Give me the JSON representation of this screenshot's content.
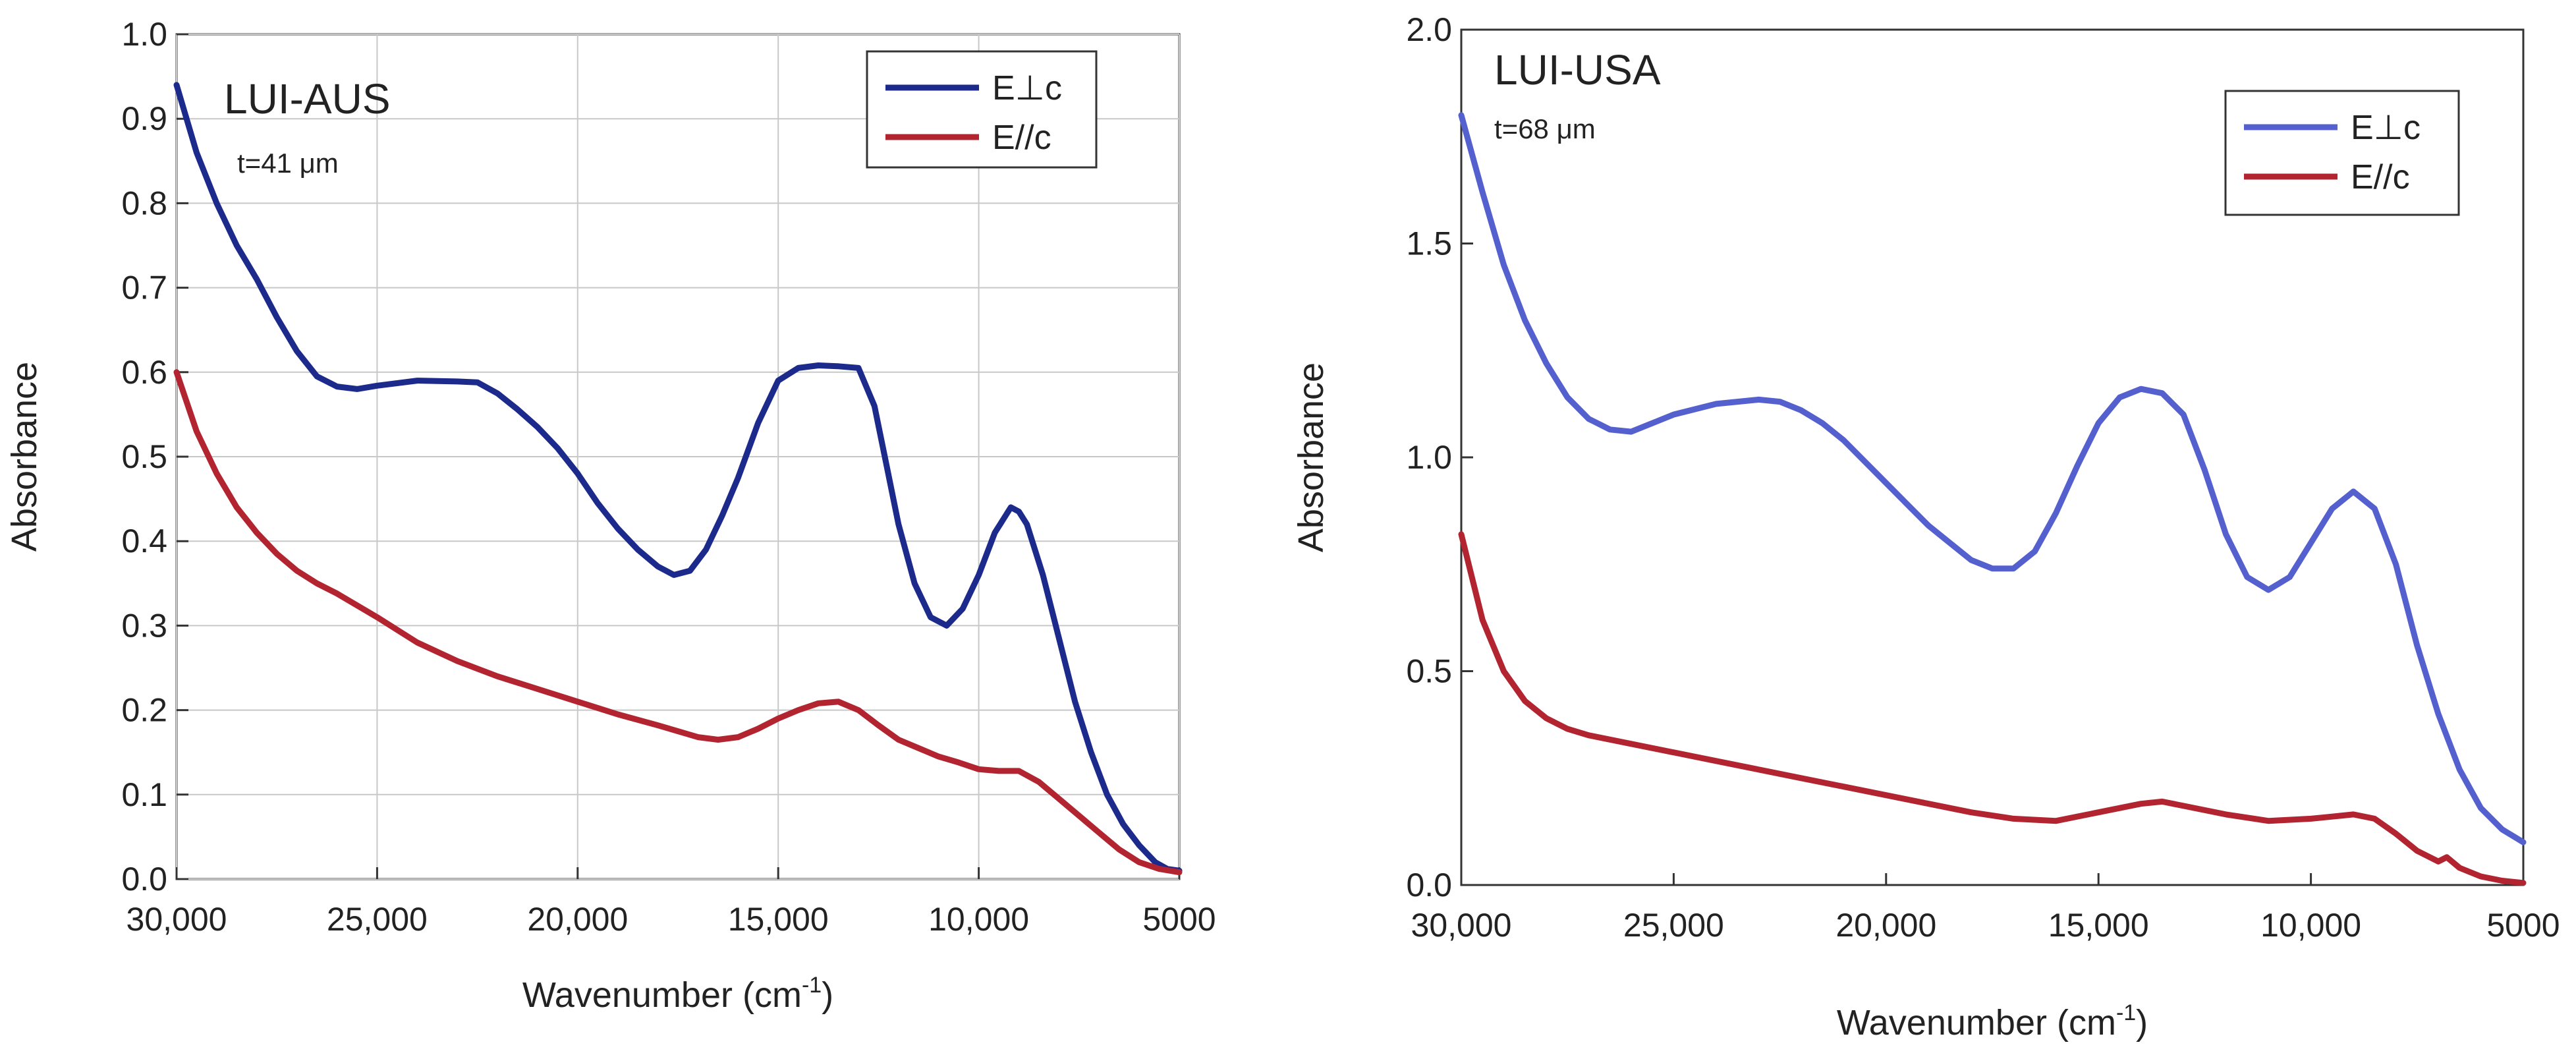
{
  "chart_data": [
    {
      "type": "line",
      "title": "LUI-AUS",
      "subtitle": "t=41 μm",
      "xlabel": "Wavenumber (cm",
      "xlabel_sup": "-1",
      "xlabel_close": ")",
      "ylabel": "Absorbance",
      "xlim": [
        30000,
        5000
      ],
      "ylim": [
        0,
        1.0
      ],
      "x_ticks": [
        30000,
        25000,
        20000,
        15000,
        10000,
        5000
      ],
      "x_tick_labels": [
        "30,000",
        "25,000",
        "20,000",
        "15,000",
        "10,000",
        "5000"
      ],
      "y_ticks": [
        0,
        0.1,
        0.2,
        0.3,
        0.4,
        0.5,
        0.6,
        0.7,
        0.8,
        0.9,
        1.0
      ],
      "y_tick_labels": [
        "0.0",
        "0.1",
        "0.2",
        "0.3",
        "0.4",
        "0.5",
        "0.6",
        "0.7",
        "0.8",
        "0.9",
        "1.0"
      ],
      "grid": true,
      "legend_position": "top-right",
      "series": [
        {
          "name": "E⊥c",
          "color": "#1c2a8c",
          "x": [
            30000,
            29500,
            29000,
            28500,
            28000,
            27500,
            27000,
            26500,
            26000,
            25500,
            25000,
            24000,
            23000,
            22500,
            22000,
            21500,
            21000,
            20500,
            20000,
            19500,
            19000,
            18500,
            18000,
            17600,
            17200,
            16800,
            16400,
            16000,
            15500,
            15000,
            14500,
            14000,
            13500,
            13000,
            12600,
            12300,
            12000,
            11600,
            11200,
            10800,
            10400,
            10000,
            9600,
            9200,
            9000,
            8800,
            8400,
            8000,
            7600,
            7200,
            6800,
            6400,
            6000,
            5600,
            5300,
            5000
          ],
          "y": [
            0.94,
            0.86,
            0.8,
            0.75,
            0.71,
            0.665,
            0.625,
            0.595,
            0.583,
            0.58,
            0.584,
            0.59,
            0.589,
            0.588,
            0.575,
            0.556,
            0.535,
            0.51,
            0.48,
            0.445,
            0.415,
            0.39,
            0.37,
            0.36,
            0.365,
            0.39,
            0.43,
            0.475,
            0.54,
            0.59,
            0.605,
            0.608,
            0.607,
            0.605,
            0.56,
            0.49,
            0.42,
            0.35,
            0.31,
            0.3,
            0.32,
            0.36,
            0.41,
            0.44,
            0.435,
            0.42,
            0.36,
            0.285,
            0.21,
            0.15,
            0.1,
            0.065,
            0.04,
            0.02,
            0.012,
            0.01
          ]
        },
        {
          "name": "E//c",
          "color": "#b22530",
          "x": [
            30000,
            29500,
            29000,
            28500,
            28000,
            27500,
            27000,
            26500,
            26000,
            25000,
            24000,
            23000,
            22000,
            21000,
            20000,
            19000,
            18000,
            17000,
            16500,
            16000,
            15500,
            15000,
            14500,
            14000,
            13500,
            13000,
            12500,
            12000,
            11500,
            11000,
            10500,
            10000,
            9500,
            9000,
            8500,
            8000,
            7500,
            7000,
            6500,
            6000,
            5500,
            5000
          ],
          "y": [
            0.6,
            0.53,
            0.48,
            0.44,
            0.41,
            0.385,
            0.365,
            0.35,
            0.338,
            0.31,
            0.28,
            0.258,
            0.24,
            0.225,
            0.21,
            0.195,
            0.182,
            0.168,
            0.165,
            0.168,
            0.178,
            0.19,
            0.2,
            0.208,
            0.21,
            0.2,
            0.182,
            0.165,
            0.155,
            0.145,
            0.138,
            0.13,
            0.128,
            0.128,
            0.115,
            0.095,
            0.075,
            0.055,
            0.035,
            0.02,
            0.012,
            0.008
          ]
        }
      ]
    },
    {
      "type": "line",
      "title": "LUI-USA",
      "subtitle": "t=68 μm",
      "xlabel": "Wavenumber (cm",
      "xlabel_sup": "-1",
      "xlabel_close": ")",
      "ylabel": "Absorbance",
      "xlim": [
        30000,
        5000
      ],
      "ylim": [
        0,
        2.0
      ],
      "x_ticks": [
        30000,
        25000,
        20000,
        15000,
        10000,
        5000
      ],
      "x_tick_labels": [
        "30,000",
        "25,000",
        "20,000",
        "15,000",
        "10,000",
        "5000"
      ],
      "y_ticks": [
        0,
        0.5,
        1.0,
        1.5,
        2.0
      ],
      "y_tick_labels": [
        "0.0",
        "0.5",
        "1.0",
        "1.5",
        "2.0"
      ],
      "grid": false,
      "legend_position": "top-right",
      "series": [
        {
          "name": "E⊥c",
          "color": "#5560cf",
          "x": [
            30000,
            29500,
            29000,
            28500,
            28000,
            27500,
            27000,
            26500,
            26000,
            25500,
            25000,
            24000,
            23000,
            22500,
            22000,
            21500,
            21000,
            20500,
            20000,
            19500,
            19000,
            18500,
            18000,
            17500,
            17000,
            16500,
            16000,
            15500,
            15000,
            14500,
            14000,
            13500,
            13000,
            12500,
            12000,
            11500,
            11000,
            10500,
            10000,
            9500,
            9000,
            8500,
            8000,
            7500,
            7000,
            6500,
            6000,
            5500,
            5000
          ],
          "y": [
            1.8,
            1.62,
            1.45,
            1.32,
            1.22,
            1.14,
            1.09,
            1.065,
            1.06,
            1.08,
            1.1,
            1.125,
            1.135,
            1.13,
            1.11,
            1.08,
            1.04,
            0.99,
            0.94,
            0.89,
            0.84,
            0.8,
            0.76,
            0.74,
            0.74,
            0.78,
            0.87,
            0.98,
            1.08,
            1.14,
            1.16,
            1.15,
            1.1,
            0.97,
            0.82,
            0.72,
            0.69,
            0.72,
            0.8,
            0.88,
            0.92,
            0.88,
            0.75,
            0.56,
            0.4,
            0.27,
            0.18,
            0.13,
            0.1
          ]
        },
        {
          "name": "E//c",
          "color": "#b22530",
          "x": [
            30000,
            29500,
            29000,
            28500,
            28000,
            27500,
            27000,
            26500,
            26000,
            25000,
            24000,
            23000,
            22000,
            21000,
            20000,
            19000,
            18000,
            17000,
            16000,
            15000,
            14000,
            13500,
            13000,
            12000,
            11000,
            10000,
            9500,
            9000,
            8500,
            8000,
            7500,
            7000,
            6800,
            6500,
            6000,
            5500,
            5000
          ],
          "y": [
            0.82,
            0.62,
            0.5,
            0.43,
            0.39,
            0.365,
            0.35,
            0.34,
            0.33,
            0.31,
            0.29,
            0.27,
            0.25,
            0.23,
            0.21,
            0.19,
            0.17,
            0.155,
            0.15,
            0.17,
            0.19,
            0.195,
            0.185,
            0.165,
            0.15,
            0.155,
            0.16,
            0.165,
            0.155,
            0.12,
            0.08,
            0.055,
            0.065,
            0.04,
            0.02,
            0.01,
            0.005
          ]
        }
      ]
    }
  ]
}
